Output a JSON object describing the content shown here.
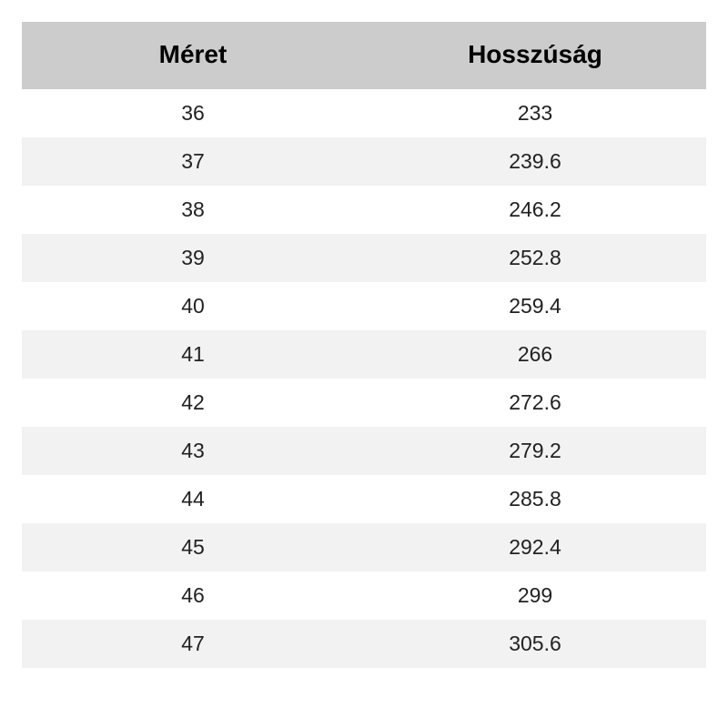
{
  "table": {
    "type": "table",
    "columns": [
      "Méret",
      "Hosszúság"
    ],
    "rows": [
      [
        "36",
        "233"
      ],
      [
        "37",
        "239.6"
      ],
      [
        "38",
        "246.2"
      ],
      [
        "39",
        "252.8"
      ],
      [
        "40",
        "259.4"
      ],
      [
        "41",
        "266"
      ],
      [
        "42",
        "272.6"
      ],
      [
        "43",
        "279.2"
      ],
      [
        "44",
        "285.8"
      ],
      [
        "45",
        "292.4"
      ],
      [
        "46",
        "299"
      ],
      [
        "47",
        "305.6"
      ]
    ],
    "header_background": "#cccccc",
    "header_fontsize": 28,
    "header_fontweight": 700,
    "header_color": "#000000",
    "cell_fontsize": 23,
    "cell_color": "#222222",
    "row_even_background": "#ffffff",
    "row_odd_background": "#f2f2f2",
    "page_background": "#ffffff",
    "column_alignment": [
      "center",
      "center"
    ]
  }
}
